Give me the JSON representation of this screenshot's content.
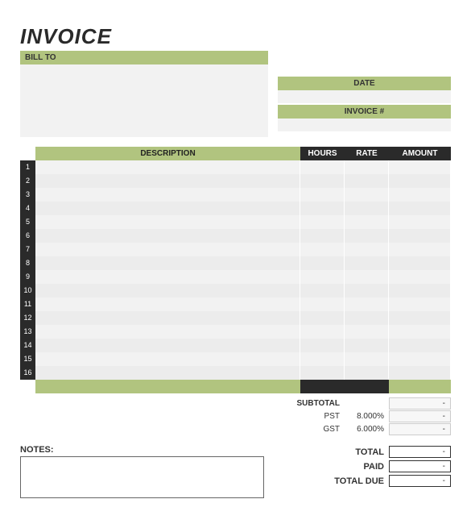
{
  "title": "INVOICE",
  "bill_to_label": "BILL TO",
  "meta": {
    "date_label": "DATE",
    "date_value": "",
    "invoice_num_label": "INVOICE #",
    "invoice_num_value": ""
  },
  "table": {
    "headers": {
      "description": "DESCRIPTION",
      "hours": "HOURS",
      "rate": "RATE",
      "amount": "AMOUNT"
    },
    "row_count": 16,
    "row_bg_even": "#f2f2f2",
    "row_bg_odd": "#ececec",
    "num_bg": "#2a2a2a",
    "header_desc_bg": "#b1c47f",
    "header_dark_bg": "#2a2a2a"
  },
  "summary": {
    "subtotal_label": "SUBTOTAL",
    "subtotal_value": "-",
    "pst_label": "PST",
    "pst_rate": "8.000%",
    "pst_value": "-",
    "gst_label": "GST",
    "gst_rate": "6.000%",
    "gst_value": "-"
  },
  "notes_label": "NOTES:",
  "totals": {
    "total_label": "TOTAL",
    "total_value": "-",
    "paid_label": "PAID",
    "paid_value": "-",
    "due_label": "TOTAL DUE",
    "due_value": "-"
  },
  "colors": {
    "accent": "#b1c47f",
    "dark": "#2a2a2a",
    "light_fill": "#f2f2f2"
  }
}
